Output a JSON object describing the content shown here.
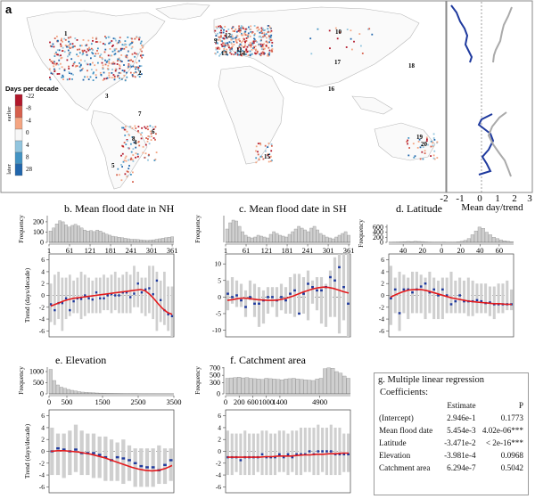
{
  "panel_a": {
    "label": "a",
    "legend_title": "Days per decade",
    "legend_values": [
      "-22",
      "-8",
      "-4",
      "0",
      "4",
      "8",
      "28"
    ],
    "legend_side_top": "earlier",
    "legend_side_bottom": "later",
    "colors": [
      "#b2182b",
      "#d6604d",
      "#f4a582",
      "#f7f7f7",
      "#92c5de",
      "#4393c3",
      "#2166ac"
    ],
    "region_numbers": [
      "1",
      "2",
      "3",
      "4",
      "5",
      "6",
      "7",
      "8",
      "9",
      "10",
      "11",
      "12",
      "13",
      "14",
      "15",
      "16",
      "17",
      "18",
      "19",
      "20"
    ],
    "profile_xlabel": "Mean day/trend",
    "profile_ticks": [
      "-2",
      "-1",
      "0",
      "1",
      "2",
      "3"
    ],
    "profile_colors": {
      "mean_day": "#1f3a9e",
      "trend": "#aaaaaa"
    }
  },
  "chart_data": [
    {
      "id": "b",
      "type": "bar",
      "title": "b. Mean flood date in NH",
      "hist_ylabel": "Frequency",
      "hist_yticks": [
        0,
        100,
        200
      ],
      "hist_ylim": [
        0,
        260
      ],
      "hist_counts": [
        110,
        140,
        180,
        210,
        200,
        170,
        150,
        165,
        175,
        160,
        140,
        120,
        110,
        115,
        105,
        120,
        110,
        95,
        80,
        70,
        60,
        55,
        50,
        45,
        40,
        35,
        30,
        30,
        28,
        25,
        22,
        20,
        22,
        25,
        30,
        35,
        40,
        45,
        50,
        55
      ],
      "xlim": [
        1,
        366
      ],
      "xticks": [
        1,
        61,
        121,
        181,
        241,
        301,
        361
      ],
      "trend_ylabel": "Trend (days/decade)",
      "yticks": [
        -6,
        -4,
        -2,
        0,
        2,
        4,
        6
      ],
      "ylim": [
        -7,
        7
      ],
      "bins_low": [
        -4.5,
        -5,
        -4,
        -6,
        -4,
        -3.5,
        -3,
        -3,
        -4,
        -3.5,
        -3,
        -3,
        -3,
        -3,
        -2.5,
        -2.5,
        -3,
        -2.5,
        -3,
        -3,
        -3,
        -3,
        -2,
        -2,
        -3,
        -3.5,
        -3,
        -4,
        -6,
        -4.5,
        -5,
        -6,
        -7
      ],
      "bins_high": [
        2,
        3.5,
        4,
        3,
        3,
        3.5,
        2.5,
        3,
        4,
        3.5,
        3,
        2.5,
        3,
        3,
        3.5,
        3,
        3.5,
        4,
        3,
        3.5,
        4,
        3.5,
        5,
        4,
        3,
        3,
        5,
        5,
        4,
        2.5,
        4,
        1.5,
        1.5
      ],
      "bins_median": [
        -1.5,
        -2.5,
        -1.3,
        -1.3,
        -0.5,
        -2.5,
        -1,
        -0.5,
        -0.6,
        0,
        -0.5,
        -0.7,
        0.5,
        -0.5,
        -0.5,
        0,
        0.2,
        0,
        0,
        0.5,
        0.5,
        -0.3,
        0.3,
        2,
        0.5,
        1,
        1.2,
        0.2,
        2.5,
        -0.8,
        -2.5,
        -3.2,
        -3.5
      ],
      "smooth": [
        -1.8,
        -1.5,
        -1.2,
        -0.9,
        -0.7,
        -0.5,
        -0.4,
        -0.3,
        -0.2,
        -0.1,
        0,
        0.1,
        0.2,
        0.3,
        0.4,
        0.5,
        0.6,
        0.7,
        0.8,
        0.9,
        1,
        0.8,
        0.2,
        -0.6,
        -1.5,
        -2.3,
        -2.9,
        -3.2
      ]
    },
    {
      "id": "c",
      "type": "bar",
      "title": "c. Mean flood date in SH",
      "hist_ylabel": "Frequency",
      "hist_yticks": [],
      "hist_ylim": [
        0,
        30
      ],
      "hist_counts": [
        15,
        22,
        25,
        24,
        18,
        12,
        8,
        6,
        5,
        6,
        8,
        7,
        6,
        5,
        9,
        12,
        10,
        8,
        7,
        6,
        9,
        12,
        15,
        18,
        16,
        14,
        12,
        16,
        18,
        14,
        10,
        8,
        6,
        5,
        4,
        6,
        8,
        10,
        12,
        8
      ],
      "xlim": [
        1,
        366
      ],
      "xticks": [
        1,
        61,
        121,
        181,
        241,
        301,
        361
      ],
      "trend_ylabel": "",
      "yticks": [
        -10,
        -5,
        0,
        5,
        10
      ],
      "ylim": [
        -12,
        13
      ],
      "bins_low": [
        -4,
        -2,
        -3,
        -3,
        -6,
        -1,
        -6,
        -9,
        -8,
        -5,
        -3,
        -6,
        -4,
        -5,
        -5,
        -6,
        -5,
        -5,
        -7,
        -2,
        -4,
        -8,
        -9,
        -6,
        -6,
        -11,
        -7,
        -13
      ],
      "bins_high": [
        5,
        6,
        5,
        4,
        2,
        5,
        4,
        3,
        2,
        3,
        3,
        3,
        4,
        3,
        6,
        7,
        7,
        6,
        8,
        5,
        6,
        6,
        4,
        8,
        12,
        13,
        13,
        13
      ],
      "bins_median": [
        1,
        0,
        0.5,
        -1,
        -3,
        0,
        -2,
        -2,
        -1,
        0,
        0,
        -1,
        0,
        -1,
        1,
        2,
        -5,
        1,
        4,
        3,
        2,
        2,
        3,
        6,
        5,
        9,
        3,
        -2
      ],
      "smooth": [
        -1,
        -0.8,
        -0.5,
        -0.3,
        -0.4,
        -0.6,
        -0.8,
        -0.9,
        -1,
        -1,
        -0.9,
        -0.6,
        -0.2,
        0.3,
        0.9,
        1.5,
        2,
        2.5,
        2.8,
        3,
        2.9,
        2.6,
        2.1,
        1.6,
        1.2
      ]
    },
    {
      "id": "d",
      "type": "bar",
      "title": "d. Latitude",
      "hist_ylabel": "Frequency",
      "hist_yticks": [
        0,
        200,
        400,
        600
      ],
      "hist_ylim": [
        0,
        700
      ],
      "hist_counts": [
        5,
        8,
        15,
        20,
        25,
        35,
        30,
        40,
        35,
        30,
        20,
        15,
        10,
        8,
        12,
        15,
        10,
        8,
        10,
        20,
        40,
        80,
        150,
        300,
        450,
        600,
        550,
        400,
        300,
        200,
        150,
        100,
        60,
        40,
        20
      ],
      "xlim": [
        -55,
        75
      ],
      "xticks": [
        -40,
        -20,
        0,
        20,
        40,
        60
      ],
      "xticklabels": [
        "40",
        "20",
        "0",
        "20",
        "40",
        "60"
      ],
      "trend_ylabel": "",
      "yticks": [
        -6,
        -4,
        -2,
        0,
        2,
        4,
        6
      ],
      "ylim": [
        -7,
        7
      ],
      "bins_low": [
        -5,
        -3,
        -6,
        -3,
        -4,
        -3,
        -3,
        -3,
        -4,
        -3,
        -4,
        -4,
        -4,
        -3,
        -3,
        -3,
        -3,
        -3,
        -3.5,
        -3.5,
        -3,
        -3,
        -3,
        -3.5,
        -4,
        -3,
        -3,
        -2.5,
        -2.5
      ],
      "bins_high": [
        5,
        3,
        4,
        3.5,
        3,
        4,
        4,
        3.5,
        3,
        4,
        3,
        2.5,
        3,
        3,
        4,
        2.5,
        3,
        2.5,
        3,
        2.5,
        2,
        2,
        2,
        1.5,
        1.5,
        2,
        2,
        2.5,
        1
      ],
      "bins_median": [
        -0.5,
        1,
        -3,
        1,
        1,
        0.5,
        1,
        1.5,
        2,
        0.5,
        1,
        0,
        1,
        0,
        -1.5,
        -1,
        0,
        -1,
        -1,
        -1,
        -0.8,
        -1,
        -1.3,
        -1.2,
        -1.5,
        -1.5,
        -1.5,
        -1.5,
        -1.5
      ],
      "smooth": [
        -0.3,
        0.2,
        0.6,
        0.9,
        1,
        1,
        0.8,
        0.5,
        0.2,
        -0.1,
        -0.4,
        -0.6,
        -0.8,
        -1,
        -1.1,
        -1.2,
        -1.3,
        -1.4,
        -1.4,
        -1.5,
        -1.5
      ]
    },
    {
      "id": "e",
      "type": "bar",
      "title": "e. Elevation",
      "hist_ylabel": "Frequency",
      "hist_yticks": [
        0,
        500,
        1000
      ],
      "hist_ylim": [
        0,
        1200
      ],
      "hist_counts": [
        1100,
        600,
        400,
        300,
        250,
        200,
        160,
        130,
        100,
        80,
        70,
        60,
        50,
        40,
        35,
        30,
        25,
        22,
        20,
        18,
        15,
        12,
        10,
        10,
        8,
        6,
        5,
        5,
        4,
        4,
        3,
        3,
        2,
        2,
        1
      ],
      "xlim": [
        0,
        3500
      ],
      "xticks": [
        0,
        500,
        1500,
        2500,
        3500
      ],
      "trend_ylabel": "Trend (days/decade)",
      "yticks": [
        -6,
        -4,
        -2,
        0,
        2,
        4,
        6
      ],
      "ylim": [
        -7,
        7
      ],
      "bins_low": [
        -4,
        -4,
        -4.5,
        -4,
        -3.5,
        -4,
        -4,
        -4.5,
        -4.5,
        -5,
        -5,
        -5,
        -5.5,
        -5,
        -6,
        -6,
        -6,
        -6,
        -5.5,
        -5.5,
        -5
      ],
      "bins_high": [
        4,
        3,
        3,
        3.5,
        4.5,
        3.5,
        3,
        3,
        2.5,
        2.5,
        2,
        1.5,
        2,
        1,
        0.5,
        0.5,
        0.5,
        0.5,
        1,
        0.5,
        0.5
      ],
      "bins_median": [
        0,
        0.5,
        0.3,
        0,
        0.3,
        -0.3,
        -0.3,
        -0.3,
        -0.6,
        -1,
        -1.5,
        -1,
        -1.2,
        -1.5,
        -2,
        -2.5,
        -2.7,
        -2.7,
        -3.2,
        -2.3,
        -1.5
      ],
      "smooth": [
        0,
        0.1,
        0.1,
        0,
        -0.1,
        -0.3,
        -0.5,
        -0.8,
        -1.1,
        -1.5,
        -1.9,
        -2.3,
        -2.7,
        -3,
        -3.2,
        -3.3,
        -3.2,
        -2.9,
        -2.4
      ]
    },
    {
      "id": "f",
      "type": "bar",
      "title": "f. Catchment area",
      "hist_ylabel": "Frequency",
      "hist_yticks": [
        0,
        300,
        500,
        700
      ],
      "hist_ylim": [
        0,
        720
      ],
      "hist_counts": [
        420,
        430,
        440,
        450,
        430,
        440,
        420,
        410,
        400,
        390,
        420,
        410,
        400,
        390,
        380,
        400,
        410,
        420,
        400,
        390,
        380,
        370,
        360,
        400,
        420,
        680,
        700,
        690,
        600,
        560,
        480,
        420
      ],
      "xlim": [
        0,
        5700
      ],
      "xticks": [
        0,
        200,
        600,
        1000,
        1400,
        4900
      ],
      "xtickpos": [
        0,
        620,
        1240,
        1860,
        2480,
        4300
      ],
      "xticklabels": [
        "0",
        "200",
        "600",
        "1000",
        "1400",
        "4900"
      ],
      "trend_ylabel": "",
      "yticks": [
        -6,
        -4,
        -2,
        0,
        2,
        4,
        6
      ],
      "ylim": [
        -7,
        7
      ],
      "bins_low": [
        -4,
        -4,
        -3.5,
        -4,
        -4,
        -4,
        -4,
        -3.5,
        -4,
        -4,
        -4,
        -4,
        -3.5,
        -3.5,
        -4,
        -3.5,
        -4,
        -4,
        -3.5,
        -3.5,
        -4,
        -4,
        -3.5,
        -4,
        -4,
        -4,
        -4,
        -3.5,
        -3.5
      ],
      "bins_high": [
        3.5,
        3,
        3,
        3,
        3.5,
        3,
        3,
        3,
        3.5,
        3.5,
        3,
        3,
        3.5,
        3.5,
        3,
        3.5,
        3.5,
        4,
        4,
        4,
        4,
        4.5,
        4,
        4,
        4.5,
        4,
        4,
        3,
        3
      ],
      "bins_median": [
        -1,
        -1,
        -1,
        -1.5,
        -1,
        -1,
        -1,
        -1,
        -0.5,
        -1,
        -1,
        -1,
        -0.5,
        -1,
        -0.5,
        -1,
        -0.5,
        -0.5,
        -0.5,
        0,
        -0.5,
        0,
        0,
        0,
        0,
        -0.5,
        -0.5,
        -0.5,
        -0.5
      ],
      "smooth": [
        -1,
        -1,
        -1,
        -1,
        -1,
        -1,
        -0.9,
        -0.9,
        -0.8,
        -0.8,
        -0.8,
        -0.7,
        -0.6,
        -0.6,
        -0.5,
        -0.5,
        -0.4,
        -0.4,
        -0.3,
        -0.3
      ]
    },
    {
      "id": "a_profile",
      "type": "line",
      "title": "",
      "xlabel": "Mean day/trend",
      "xticks": [
        -2,
        -1,
        0,
        1,
        2,
        3
      ],
      "xlim": [
        -2.2,
        3.2
      ],
      "series": []
    }
  ],
  "regression": {
    "title": "g. Multiple linear regression",
    "coef_label": "Coefficients:",
    "headers": [
      "",
      "Estimate",
      "P"
    ],
    "rows": [
      [
        "(Intercept)",
        "2.946e-1",
        "0.1773"
      ],
      [
        "Mean flood date",
        "5.454e-3",
        "4.02e-06***"
      ],
      [
        "Latitude",
        "-3.471e-2",
        "< 2e-16***"
      ],
      [
        "Elevation",
        "-3.981e-4",
        "0.0968"
      ],
      [
        "Catchment area",
        "6.294e-7",
        "0.5042"
      ]
    ]
  }
}
